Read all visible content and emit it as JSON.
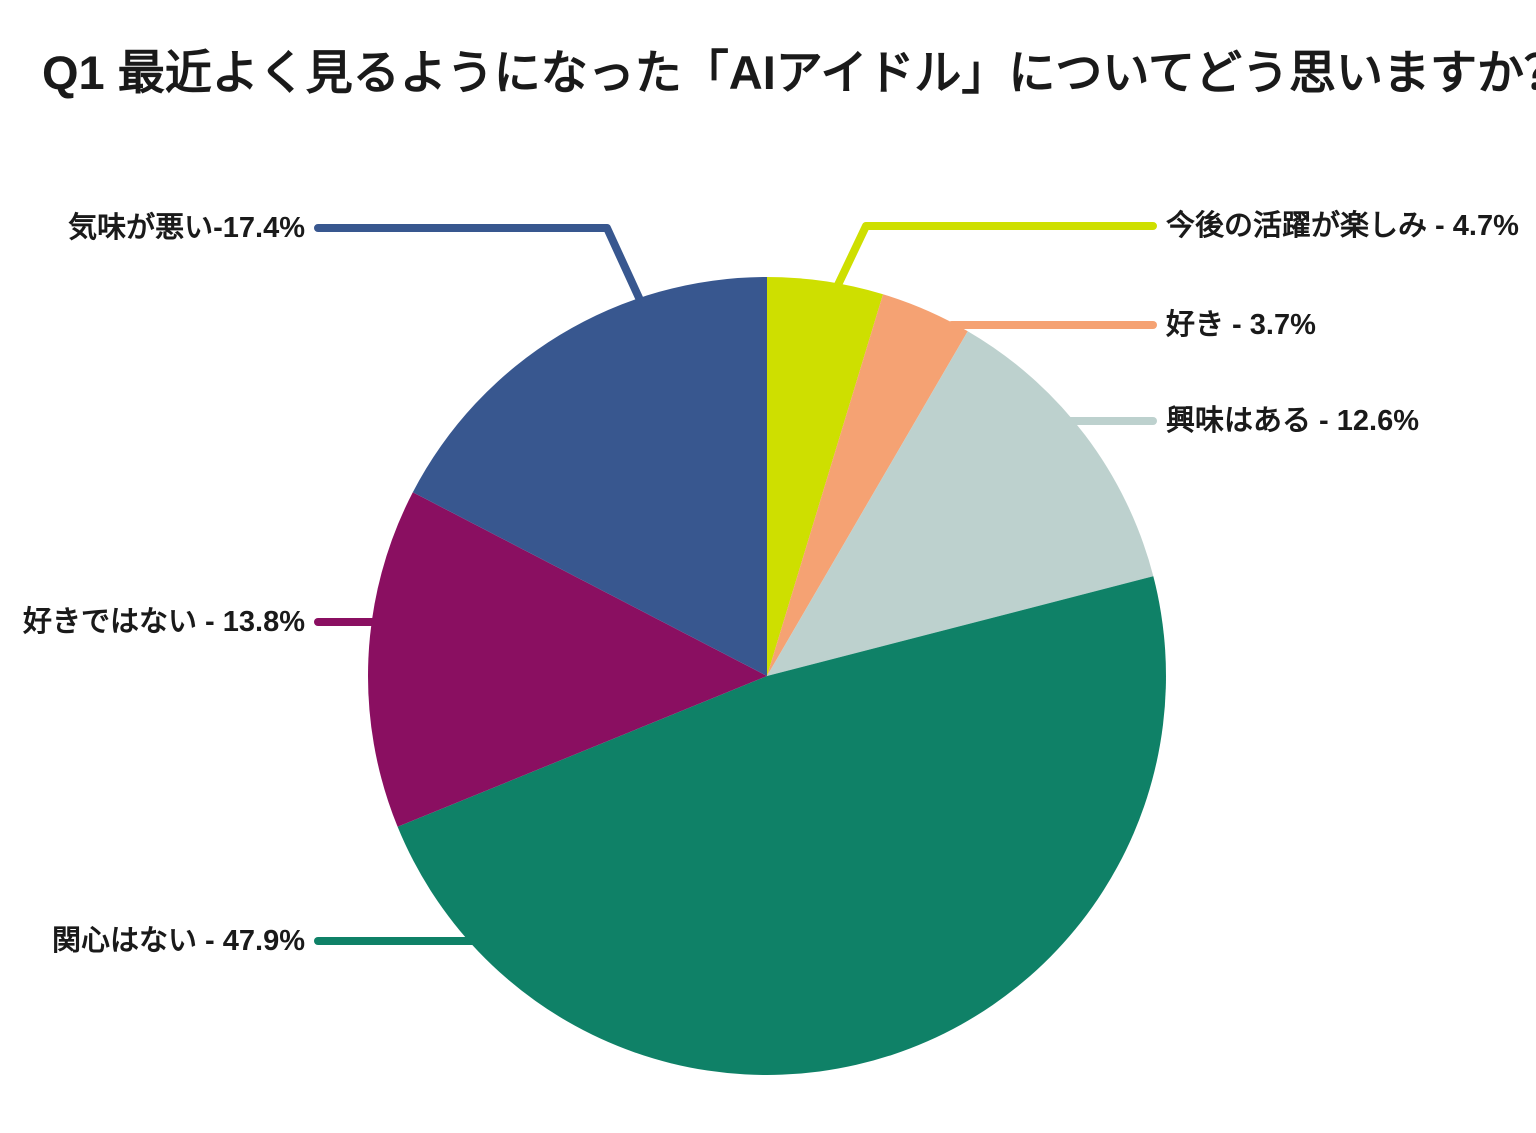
{
  "title": "Q1 最近よく見るようになった「AIアイドル」についてどう思いますか？",
  "colors": {
    "background": "#ffffff",
    "text": "#1a1a1a"
  },
  "chart_data": {
    "type": "pie",
    "title": "Q1 最近よく見るようになった「AIアイドル」についてどう思いますか？",
    "unit": "%",
    "start_angle_deg": 0,
    "direction": "clockwise",
    "legend_position": "callout-labels",
    "segments": [
      {
        "label": "今後の活躍が楽しみ",
        "value": 4.7,
        "color": "#cedf00",
        "display": "今後の活躍が楽しみ - 4.7%",
        "callout_side": "right"
      },
      {
        "label": "好き",
        "value": 3.7,
        "color": "#f5a273",
        "display": "好き - 3.7%",
        "callout_side": "right"
      },
      {
        "label": "興味はある",
        "value": 12.6,
        "color": "#bdd1ce",
        "display": "興味はある - 12.6%",
        "callout_side": "right"
      },
      {
        "label": "関心はない",
        "value": 47.9,
        "color": "#0f8167",
        "display": "関心はない - 47.9%",
        "callout_side": "left"
      },
      {
        "label": "好きではない",
        "value": 13.8,
        "color": "#8a0f61",
        "display": "好きではない - 13.8%",
        "callout_side": "left"
      },
      {
        "label": "気味が悪い",
        "value": 17.4,
        "color": "#38578f",
        "display": "気味が悪い-17.4%",
        "callout_side": "left"
      }
    ]
  }
}
